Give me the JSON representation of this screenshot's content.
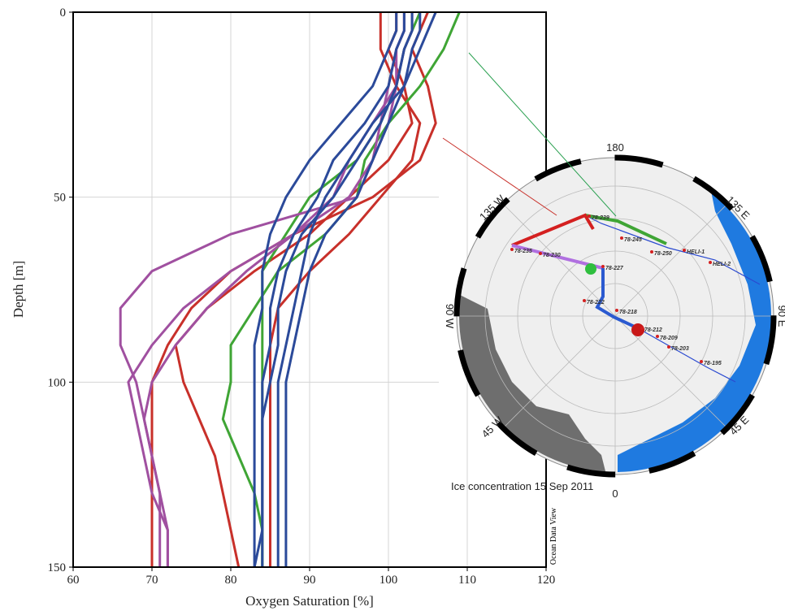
{
  "chart_data": {
    "type": "line",
    "x_label": "Oxygen Saturation [%]",
    "y_label": "Depth [m]",
    "annotation": "Ocean Data View",
    "xlim": [
      60,
      120
    ],
    "xticks": [
      60,
      70,
      80,
      90,
      100,
      110,
      120
    ],
    "ylim": [
      0,
      150
    ],
    "yticks": [
      0,
      50,
      100,
      150
    ],
    "y_inverted": true,
    "grid": true,
    "y": [
      0,
      5,
      10,
      20,
      30,
      40,
      50,
      60,
      70,
      80,
      90,
      100,
      110,
      120,
      130,
      140,
      150
    ],
    "series": [
      {
        "color": "#c8302a",
        "values": [
          105,
          104,
          103,
          105,
          106,
          104,
          98,
          88,
          80,
          75,
          72,
          70,
          70,
          70,
          70,
          70,
          70
        ]
      },
      {
        "color": "#c8302a",
        "values": [
          101,
          101,
          100,
          102,
          103,
          100,
          95,
          90,
          83,
          77,
          73,
          74,
          76,
          78,
          79,
          80,
          81
        ]
      },
      {
        "color": "#c8302a",
        "values": [
          99,
          99,
          99,
          101,
          104,
          103,
          99,
          95,
          90,
          86,
          85,
          85,
          85,
          85,
          85,
          85,
          85
        ]
      },
      {
        "color": "#3fa535",
        "values": [
          109,
          108,
          107,
          104,
          100,
          97,
          96,
          92,
          86,
          83,
          80,
          80,
          79,
          81,
          83,
          84,
          84
        ]
      },
      {
        "color": "#3fa535",
        "values": [
          104,
          103,
          102,
          101,
          99,
          96,
          90,
          87,
          84,
          84,
          84,
          84,
          84,
          84,
          84,
          84,
          84
        ]
      },
      {
        "color": "#a050a0",
        "values": [
          102,
          102,
          101,
          100,
          99,
          98,
          96,
          80,
          70,
          66,
          66,
          68,
          69,
          70,
          71,
          71,
          71
        ]
      },
      {
        "color": "#a050a0",
        "values": [
          103,
          103,
          102,
          101,
          100,
          98,
          95,
          88,
          82,
          77,
          73,
          70,
          69,
          70,
          71,
          72,
          72
        ]
      },
      {
        "color": "#a050a0",
        "values": [
          102,
          102,
          101,
          101,
          98,
          95,
          93,
          88,
          80,
          74,
          70,
          67,
          68,
          69,
          70,
          72,
          72
        ]
      },
      {
        "color": "#2b4a9a",
        "values": [
          103,
          103,
          102,
          101,
          99,
          96,
          93,
          89,
          87,
          86,
          86,
          85,
          84,
          84,
          84,
          84,
          84
        ]
      },
      {
        "color": "#2b4a9a",
        "values": [
          104,
          104,
          103,
          102,
          100,
          98,
          96,
          92,
          90,
          89,
          88,
          87,
          87,
          87,
          87,
          87,
          87
        ]
      },
      {
        "color": "#2b4a9a",
        "values": [
          101,
          101,
          100,
          98,
          94,
          90,
          87,
          85,
          84,
          84,
          83,
          83,
          83,
          83,
          83,
          83,
          83
        ]
      },
      {
        "color": "#2b4a9a",
        "values": [
          102,
          102,
          101,
          100,
          97,
          93,
          91,
          88,
          86,
          85,
          85,
          84,
          84,
          84,
          84,
          84,
          83
        ]
      },
      {
        "color": "#2b4a9a",
        "values": [
          106,
          105,
          104,
          102,
          98,
          95,
          92,
          90,
          89,
          88,
          87,
          86,
          86,
          86,
          86,
          86,
          86
        ]
      }
    ]
  },
  "inset_map": {
    "caption": "Ice concentration 15 Sep 2011",
    "longitudes": [
      "180",
      "135 W",
      "135 E",
      "90 W",
      "90 E",
      "45 W",
      "45 E",
      "0"
    ],
    "stations": [
      "78-239",
      "78-245",
      "78-250",
      "HELI-1",
      "HELI-2",
      "78-235",
      "78-230",
      "78-227",
      "78-222",
      "78-218",
      "78-212",
      "78-209",
      "78-203",
      "78-195"
    ]
  }
}
